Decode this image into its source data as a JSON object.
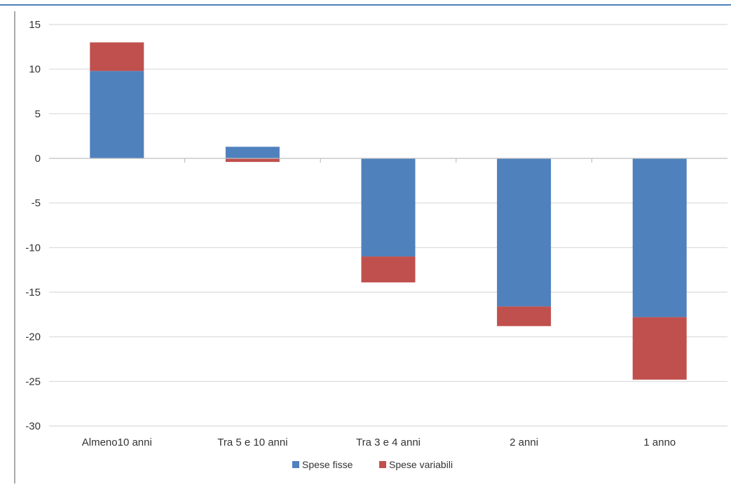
{
  "chart_data": {
    "type": "bar",
    "stacked": true,
    "categories": [
      "Almeno10 anni",
      "Tra 5 e 10 anni",
      "Tra 3 e 4 anni",
      "2 anni",
      "1 anno"
    ],
    "series": [
      {
        "name": "Spese fisse",
        "color": "#4f81bd",
        "values": [
          9.8,
          1.3,
          -11.0,
          -16.6,
          -17.8
        ]
      },
      {
        "name": "Spese variabili",
        "color": "#c0504d",
        "values": [
          3.2,
          -0.4,
          -2.9,
          -2.2,
          -7.0
        ]
      }
    ],
    "ylim": [
      -30,
      15
    ],
    "yticks": [
      "15",
      "10",
      "5",
      "0",
      "-5",
      "-10",
      "-15",
      "-20",
      "-25",
      "-30"
    ],
    "ytick_values": [
      15,
      10,
      5,
      0,
      -5,
      -10,
      -15,
      -20,
      -25,
      -30
    ],
    "grid": true,
    "legend_position": "bottom",
    "title": "",
    "xlabel": "",
    "ylabel": ""
  },
  "colors": {
    "top_rule": "#4f81bd",
    "grid": "#d9d9d9",
    "axis": "#808080",
    "left_rule": "#555555"
  }
}
